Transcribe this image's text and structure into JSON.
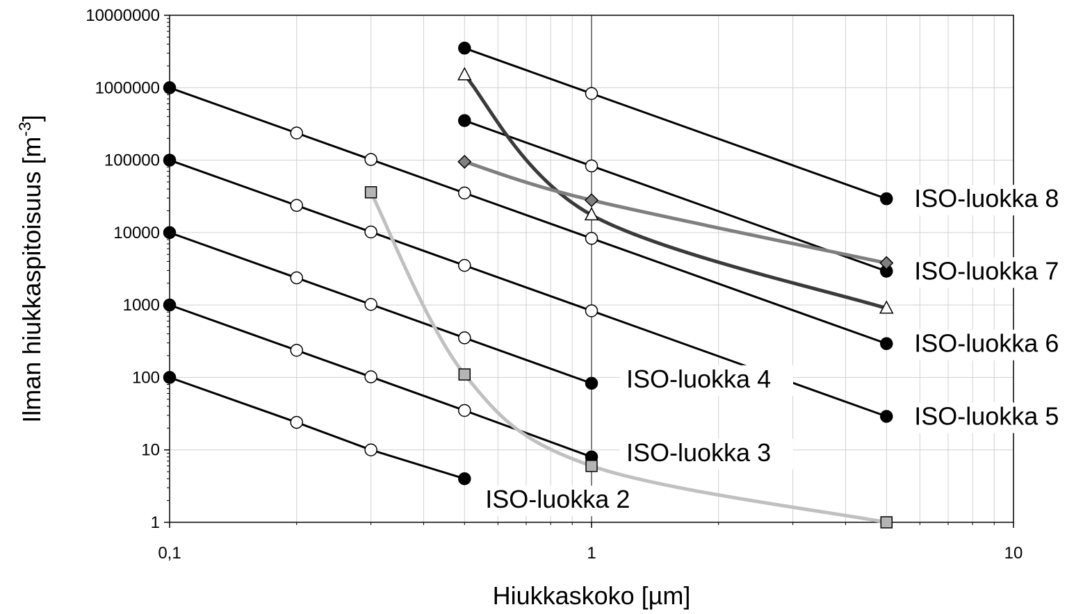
{
  "chart_data": {
    "type": "line",
    "xscale": "log",
    "yscale": "log",
    "xlim": [
      0.1,
      10
    ],
    "ylim": [
      1,
      10000000
    ],
    "grid": true,
    "xlabel": "Hiukkaskoko [µm]",
    "ylabel_main": "Ilman hiukkaspitoisuus [m",
    "ylabel_sup": "-3",
    "ylabel_close": "]",
    "xticks": [
      {
        "value": 0.1,
        "label": "0,1"
      },
      {
        "value": 1,
        "label": "1"
      },
      {
        "value": 10,
        "label": "10"
      }
    ],
    "yticks": [
      {
        "value": 1,
        "label": "1"
      },
      {
        "value": 10,
        "label": "10"
      },
      {
        "value": 100,
        "label": "100"
      },
      {
        "value": 1000,
        "label": "1000"
      },
      {
        "value": 10000,
        "label": "10000"
      },
      {
        "value": 100000,
        "label": "100000"
      },
      {
        "value": 1000000,
        "label": "1000000"
      },
      {
        "value": 10000000,
        "label": "10000000"
      }
    ],
    "series": [
      {
        "name": "ISO-luokka 8",
        "x": [
          0.5,
          1,
          5
        ],
        "y": [
          3520000,
          832000,
          29300
        ],
        "label_at": [
          5,
          29300
        ]
      },
      {
        "name": "ISO-luokka 7",
        "x": [
          0.5,
          1,
          5
        ],
        "y": [
          352000,
          83200,
          2930
        ],
        "label_at": [
          5,
          2930
        ]
      },
      {
        "name": "ISO-luokka 6",
        "x": [
          0.1,
          0.2,
          0.3,
          0.5,
          1,
          5
        ],
        "y": [
          1000000,
          237000,
          102000,
          35200,
          8320,
          293
        ],
        "label_at": [
          5,
          293
        ]
      },
      {
        "name": "ISO-luokka 5",
        "x": [
          0.1,
          0.2,
          0.3,
          0.5,
          1,
          5
        ],
        "y": [
          100000,
          23700,
          10200,
          3520,
          832,
          29
        ],
        "label_at": [
          5,
          29
        ]
      },
      {
        "name": "ISO-luokka 4",
        "x": [
          0.1,
          0.2,
          0.3,
          0.5,
          1
        ],
        "y": [
          10000,
          2370,
          1020,
          352,
          83
        ],
        "label_at": [
          1,
          83
        ]
      },
      {
        "name": "ISO-luokka 3",
        "x": [
          0.1,
          0.2,
          0.3,
          0.5,
          1
        ],
        "y": [
          1000,
          237,
          102,
          35,
          8
        ],
        "label_at": [
          1,
          8
        ]
      },
      {
        "name": "ISO-luokka 2",
        "x": [
          0.1,
          0.2,
          0.3,
          0.5
        ],
        "y": [
          100,
          24,
          10,
          4
        ],
        "label_at": [
          0.5,
          4
        ]
      }
    ],
    "measured": [
      {
        "marker": "triangle",
        "color": "#3a3a3a",
        "marker_fill": "#ffffff",
        "x": [
          0.5,
          1,
          5
        ],
        "y": [
          1500000,
          17500,
          900
        ]
      },
      {
        "marker": "diamond",
        "color": "#7f7f7f",
        "marker_fill": "#808080",
        "x": [
          0.5,
          1,
          5
        ],
        "y": [
          95000,
          28000,
          3800
        ]
      },
      {
        "marker": "square",
        "color": "#c0c0c0",
        "marker_fill": "#b4b4b4",
        "x": [
          0.3,
          0.5,
          1,
          5
        ],
        "y": [
          36000,
          110,
          6,
          1
        ]
      }
    ]
  }
}
